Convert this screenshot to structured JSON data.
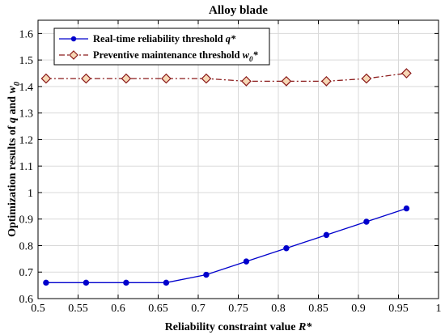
{
  "chart_data": {
    "type": "line",
    "title": "Alloy blade",
    "xlabel": "Reliability constraint value R*",
    "ylabel": "Optimization results of q and w0",
    "xlim": [
      0.5,
      1.0
    ],
    "ylim": [
      0.6,
      1.65
    ],
    "x_ticks": [
      "0.5",
      "0.55",
      "0.6",
      "0.65",
      "0.7",
      "0.75",
      "0.8",
      "0.85",
      "0.9",
      "0.95",
      "1"
    ],
    "y_ticks": [
      "0.6",
      "0.7",
      "0.8",
      "0.9",
      "1",
      "1.1",
      "1.2",
      "1.3",
      "1.4",
      "1.5",
      "1.6"
    ],
    "grid": true,
    "legend_position": "top-left",
    "x": [
      0.51,
      0.56,
      0.61,
      0.66,
      0.71,
      0.76,
      0.81,
      0.86,
      0.91,
      0.96
    ],
    "series": [
      {
        "name": "Real-time reliability threshold q*",
        "color": "#0000cc",
        "marker": "circle",
        "line": "solid",
        "values": [
          0.66,
          0.66,
          0.66,
          0.66,
          0.69,
          0.74,
          0.79,
          0.84,
          0.89,
          0.94
        ]
      },
      {
        "name": "Preventive maintenance threshold w0*",
        "color": "#8b1a1a",
        "marker": "diamond",
        "line": "dashdot",
        "values": [
          1.43,
          1.43,
          1.43,
          1.43,
          1.43,
          1.42,
          1.42,
          1.42,
          1.43,
          1.45
        ]
      }
    ]
  }
}
